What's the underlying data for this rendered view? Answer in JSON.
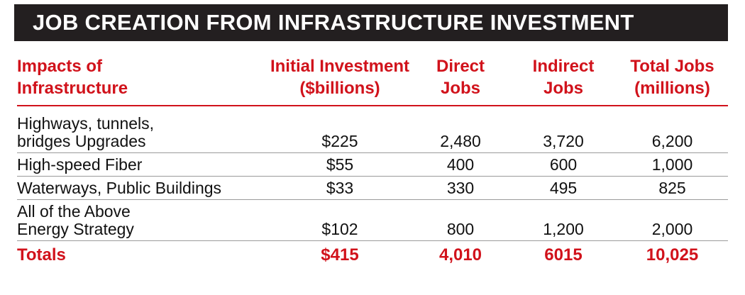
{
  "chart_data": {
    "type": "table",
    "title": "JOB CREATION FROM INFRASTRUCTURE INVESTMENT",
    "columns": [
      "Impacts of\nInfrastructure",
      "Initial Investment\n($billions)",
      "Direct\nJobs",
      "Indirect\nJobs",
      "Total Jobs\n(millions)"
    ],
    "rows": [
      [
        "Highways, tunnels,\nbridges Upgrades",
        "$225",
        "2,480",
        "3,720",
        "6,200"
      ],
      [
        "High-speed Fiber",
        "$55",
        "400",
        "600",
        "1,000"
      ],
      [
        "Waterways, Public Buildings",
        "$33",
        "330",
        "495",
        "825"
      ],
      [
        "All of the Above\nEnergy Strategy",
        "$102",
        "800",
        "1,200",
        "2,000"
      ]
    ],
    "totals": [
      "Totals",
      "$415",
      "4,010",
      "6015",
      "10,025"
    ],
    "colors": {
      "accent": "#d1121b",
      "title_bg": "#231f20",
      "title_text": "#ffffff"
    }
  }
}
